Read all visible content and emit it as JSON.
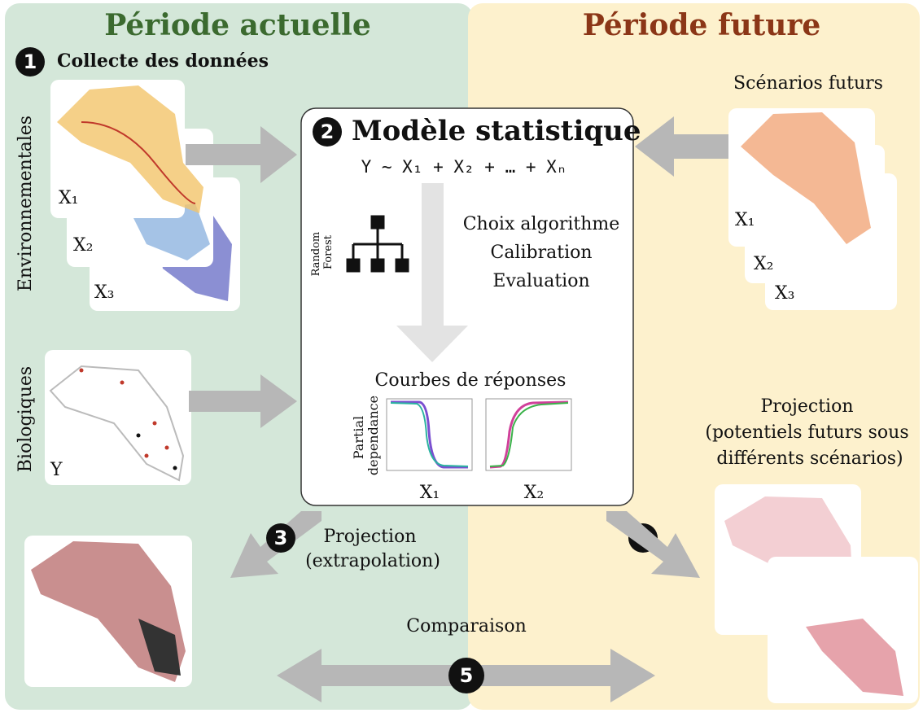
{
  "panels": {
    "current": {
      "title": "Période actuelle"
    },
    "future": {
      "title": "Période future"
    }
  },
  "step1": {
    "number": "1",
    "title": "Collecte des données",
    "environmental": {
      "label": "Environnementales",
      "layers": [
        "X₁",
        "X₂",
        "X₃"
      ]
    },
    "biological": {
      "label": "Biologiques",
      "layer": "Y"
    }
  },
  "step2": {
    "number": "2",
    "title": "Modèle statistique",
    "formula": "Y ~ X₁ + X₂ + … + Xₙ",
    "algorithm": [
      "Random",
      "Forest"
    ],
    "tasks": [
      "Choix algorithme",
      "Calibration",
      "Evaluation"
    ],
    "curves": {
      "title": "Courbes de réponses",
      "y_label": [
        "Partial",
        "dependance"
      ],
      "plots": [
        "X₁",
        "X₂"
      ]
    }
  },
  "step3": {
    "number": "3",
    "label": [
      "Projection",
      "(extrapolation)"
    ]
  },
  "future_scenarios": {
    "title": "Scénarios futurs",
    "layers": [
      "X₁",
      "X₂",
      "X₃"
    ]
  },
  "step4": {
    "number": "4",
    "label": [
      "Projection",
      "(potentiels futurs sous",
      "différents scénarios)"
    ]
  },
  "step5": {
    "number": "5",
    "label": "Comparaison"
  }
}
